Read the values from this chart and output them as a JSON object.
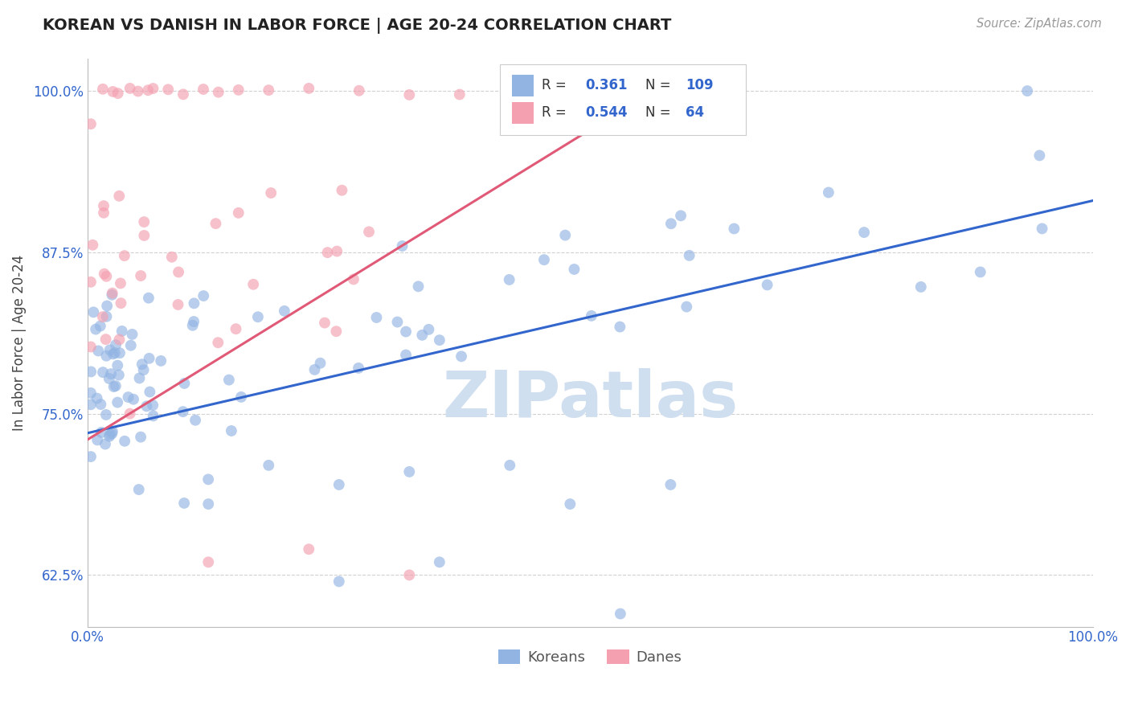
{
  "title": "KOREAN VS DANISH IN LABOR FORCE | AGE 20-24 CORRELATION CHART",
  "ylabel": "In Labor Force | Age 20-24",
  "source": "Source: ZipAtlas.com",
  "watermark": "ZIPatlas",
  "korean_R": 0.361,
  "korean_N": 109,
  "danish_R": 0.544,
  "danish_N": 64,
  "korean_color": "#92b4e3",
  "danish_color": "#f4a0b0",
  "korean_line_color": "#3366cc",
  "danish_line_color": "#e05a78",
  "legend_label_korean": "Koreans",
  "legend_label_danish": "Danes",
  "background_color": "#ffffff",
  "grid_color": "#cccccc",
  "title_color": "#222222",
  "stats_text_color": "#3366cc",
  "tick_color": "#3366cc",
  "watermark_color": "#d0dff0",
  "xlim": [
    0.0,
    1.0
  ],
  "ylim_low": 0.585,
  "ylim_high": 1.025,
  "ytick_vals": [
    0.625,
    0.75,
    0.875,
    1.0
  ],
  "ytick_labels": [
    "62.5%",
    "75.0%",
    "87.5%",
    "100.0%"
  ],
  "scatter_size": 100,
  "scatter_alpha": 0.65
}
